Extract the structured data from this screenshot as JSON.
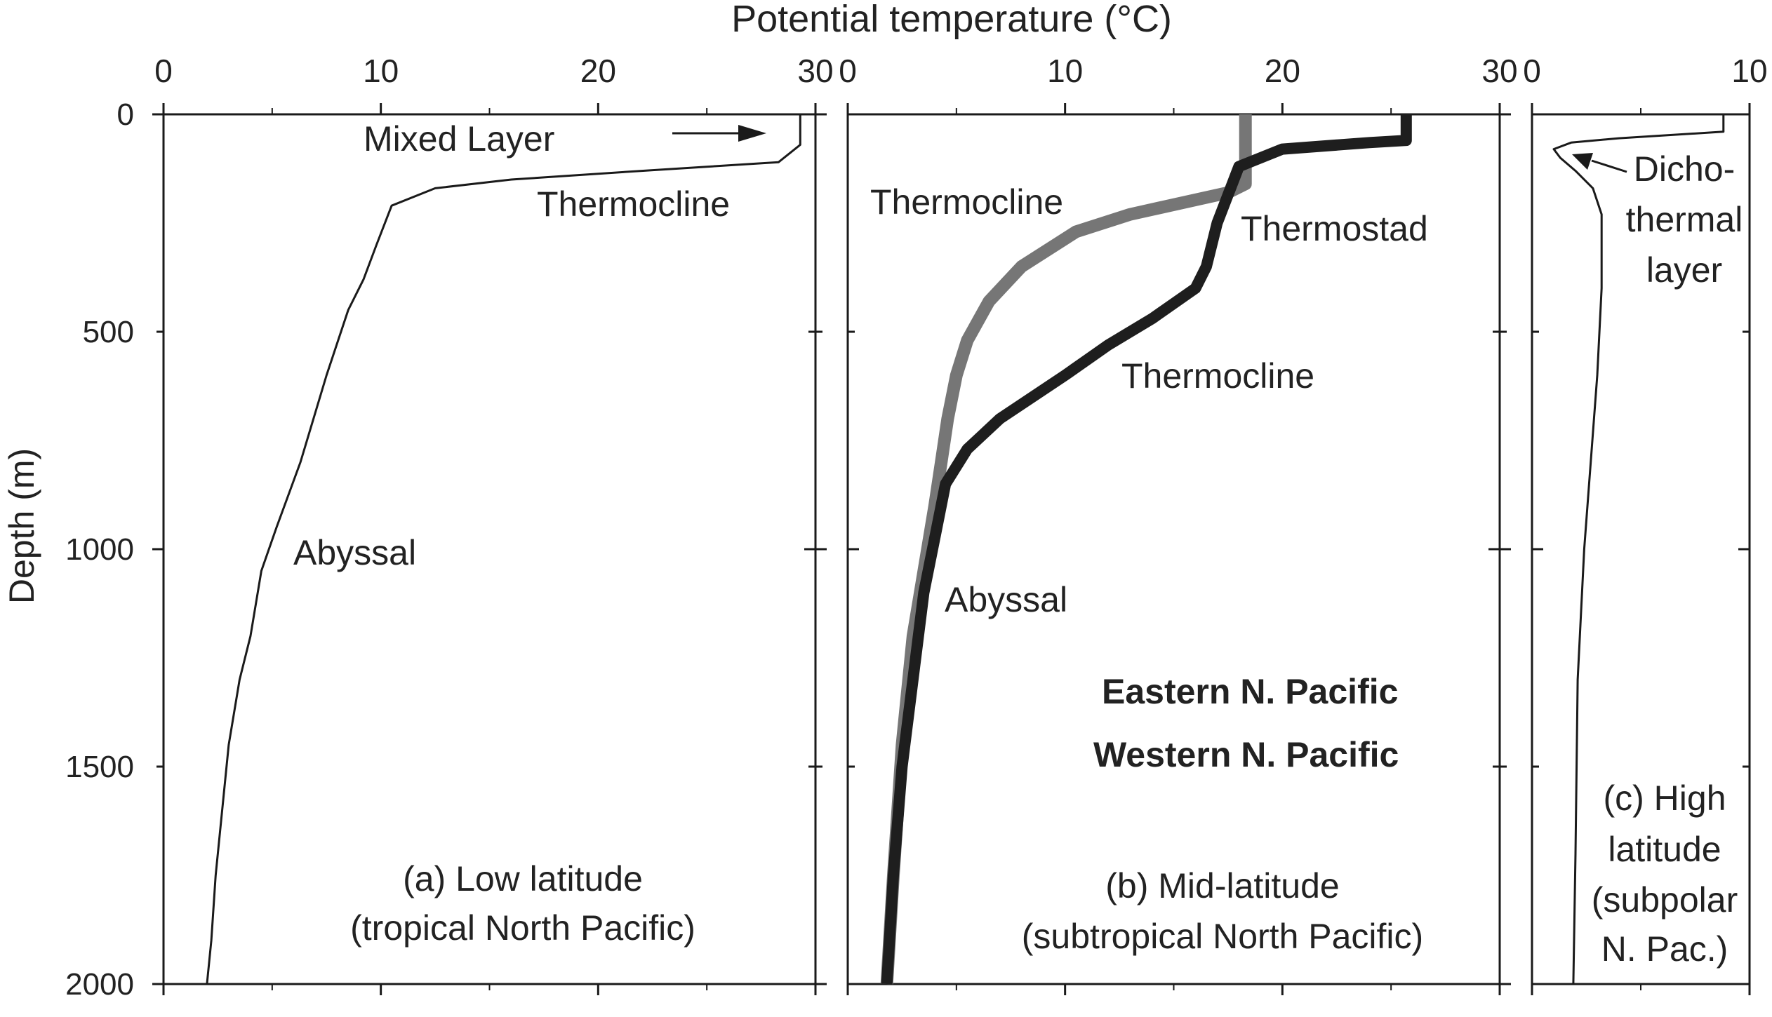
{
  "figure_title": "Potential temperature (°C)",
  "ylabel": "Depth (m)",
  "colors": {
    "axis": "#1a1a1a",
    "line": "#1a1a1a",
    "eastern": "#767676",
    "western": "#1e1e1e"
  },
  "chart_data": [
    {
      "type": "line",
      "panel_label": [
        "(a) Low latitude",
        "(tropical North Pacific)"
      ],
      "x_ticks": [
        "0",
        "10",
        "20",
        "30"
      ],
      "y_ticks": [
        "0",
        "500",
        "1000",
        "1500",
        "2000"
      ],
      "xlim": [
        0,
        30
      ],
      "ylim": [
        0,
        2000
      ],
      "x_axis_position": "top",
      "y_inverted": true,
      "annotations": {
        "mixed_layer": "Mixed Layer",
        "thermocline": "Thermocline",
        "abyssal": "Abyssal"
      },
      "series": [
        {
          "x": [
            29.3,
            29.3,
            28.3,
            22.0,
            16.0,
            12.5,
            10.5,
            9.8,
            9.2,
            8.5,
            7.5,
            6.3,
            5.2,
            4.5,
            4.0,
            3.5,
            3.0,
            2.7,
            2.4,
            2.2,
            2.0
          ],
          "y": [
            0,
            70,
            110,
            130,
            150,
            170,
            210,
            300,
            380,
            450,
            600,
            800,
            950,
            1050,
            1200,
            1300,
            1450,
            1600,
            1750,
            1900,
            2000
          ]
        }
      ]
    },
    {
      "type": "line",
      "panel_label": [
        "(b) Mid-latitude",
        "(subtropical North Pacific)"
      ],
      "x_ticks": [
        "0",
        "10",
        "20",
        "30"
      ],
      "xlim": [
        0,
        30
      ],
      "ylim": [
        0,
        2000
      ],
      "x_axis_position": "top",
      "y_inverted": true,
      "annotations": {
        "thermocline_upper": "Thermocline",
        "thermostad": "Thermostad",
        "thermocline_lower": "Thermocline",
        "abyssal": "Abyssal"
      },
      "series": [
        {
          "name": "Eastern N. Pacific",
          "x": [
            18.3,
            18.3,
            17.5,
            13.0,
            10.5,
            8.0,
            6.5,
            5.5,
            5.0,
            4.6,
            4.3,
            4.0,
            3.5,
            3.0,
            2.5,
            2.1,
            1.8
          ],
          "y": [
            0,
            160,
            180,
            230,
            270,
            350,
            430,
            520,
            600,
            700,
            800,
            900,
            1050,
            1200,
            1450,
            1750,
            2000
          ]
        },
        {
          "name": "Western N. Pacific",
          "x": [
            25.7,
            25.7,
            24.0,
            20.0,
            18.0,
            17.0,
            16.5,
            16.0,
            14.0,
            12.0,
            10.0,
            7.0,
            5.5,
            4.5,
            4.1,
            3.5,
            3.0,
            2.5,
            2.1,
            1.8
          ],
          "y": [
            0,
            60,
            65,
            80,
            120,
            250,
            350,
            400,
            470,
            530,
            600,
            700,
            770,
            850,
            950,
            1100,
            1300,
            1500,
            1750,
            2000
          ]
        }
      ]
    },
    {
      "type": "line",
      "panel_label": [
        "(c) High",
        "latitude",
        "(subpolar",
        "N. Pac.)"
      ],
      "x_ticks": [
        "0",
        "10"
      ],
      "xlim": [
        0,
        10
      ],
      "ylim": [
        0,
        2000
      ],
      "x_axis_position": "top",
      "y_inverted": true,
      "annotations": {
        "dichothermal": [
          "Dicho-",
          "thermal",
          "layer"
        ]
      },
      "series": [
        {
          "x": [
            8.8,
            8.8,
            4.0,
            1.8,
            1.0,
            1.3,
            2.0,
            2.8,
            3.2,
            3.2,
            3.0,
            2.7,
            2.4,
            2.1,
            2.0,
            1.9
          ],
          "y": [
            0,
            40,
            55,
            65,
            80,
            100,
            130,
            170,
            230,
            400,
            600,
            800,
            1000,
            1300,
            1700,
            2000
          ]
        }
      ]
    }
  ]
}
